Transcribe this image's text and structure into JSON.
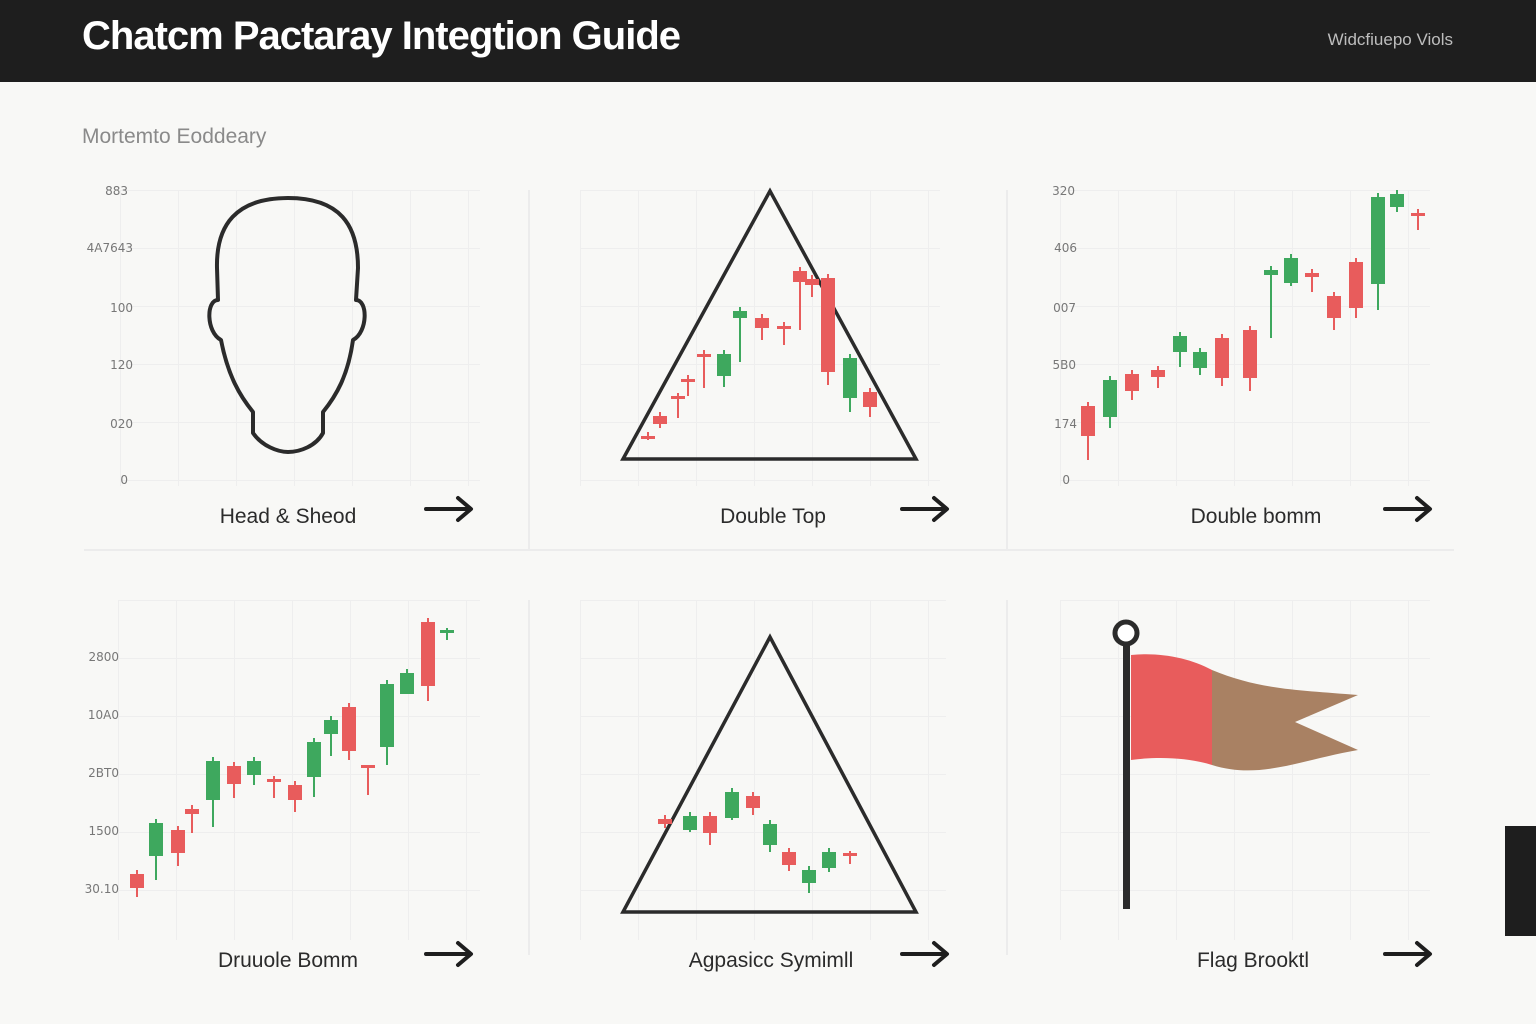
{
  "header": {
    "title": "Chatcm Pactaray Integtion Guide",
    "link": "Widcfiuepo Viols"
  },
  "subtitle": "Mortemto Eoddeary",
  "colors": {
    "bull": "#3ea85e",
    "bear": "#e85c5c",
    "flag_tail": "#a98163",
    "dark": "#1e1e1e"
  },
  "cards": [
    {
      "label": "Head & Sheod",
      "icon": "head-silhouette-icon",
      "yticks": [
        "883",
        "4A7643",
        "100",
        "120",
        "020",
        "0"
      ]
    },
    {
      "label": "Double Top",
      "icon": "triangle-candles-icon",
      "yticks": []
    },
    {
      "label": "Double bomm",
      "icon": "candlestick-uptrend-icon",
      "yticks": [
        "320",
        "406",
        "007",
        "5B0",
        "174",
        "0"
      ]
    },
    {
      "label": "Druuole Bomm",
      "icon": "candlestick-uptrend-icon",
      "yticks": [
        "2800",
        "10A0",
        "2BT0",
        "1500",
        "30.10"
      ]
    },
    {
      "label": "Agpasicc Symimll",
      "icon": "triangle-candles-icon",
      "yticks": []
    },
    {
      "label": "Flag Brooktl",
      "icon": "flag-icon",
      "yticks": []
    }
  ],
  "candles": {
    "double_top": [
      [
        648,
        440,
        432,
        436,
        "bear"
      ],
      [
        660,
        428,
        412,
        424,
        "bear"
      ],
      [
        678,
        418,
        393,
        396,
        "bear"
      ],
      [
        688,
        396,
        375,
        380,
        "bear"
      ],
      [
        704,
        388,
        350,
        355,
        "bear"
      ],
      [
        724,
        387,
        350,
        376,
        "bull"
      ],
      [
        740,
        362,
        307,
        318,
        "bull"
      ],
      [
        762,
        340,
        314,
        328,
        "bear"
      ],
      [
        784,
        345,
        322,
        328,
        "bear"
      ],
      [
        800,
        330,
        267,
        282,
        "bear"
      ],
      [
        812,
        297,
        275,
        285,
        "bear"
      ],
      [
        828,
        385,
        274,
        372,
        "bear"
      ],
      [
        850,
        412,
        354,
        398,
        "bull"
      ],
      [
        870,
        417,
        388,
        407,
        "bear"
      ]
    ],
    "uptrend_a": [
      [
        1088,
        460,
        402,
        436,
        "bear"
      ],
      [
        1110,
        428,
        376,
        417,
        "bull"
      ],
      [
        1132,
        400,
        370,
        391,
        "bear"
      ],
      [
        1158,
        388,
        366,
        377,
        "bear"
      ],
      [
        1180,
        367,
        332,
        352,
        "bull"
      ],
      [
        1200,
        375,
        348,
        368,
        "bull"
      ],
      [
        1222,
        386,
        334,
        378,
        "bear"
      ],
      [
        1250,
        391,
        326,
        378,
        "bear"
      ],
      [
        1271,
        338,
        266,
        275,
        "bull"
      ],
      [
        1291,
        286,
        254,
        283,
        "bull"
      ],
      [
        1312,
        292,
        269,
        277,
        "bear"
      ],
      [
        1334,
        330,
        292,
        318,
        "bear"
      ],
      [
        1356,
        318,
        258,
        308,
        "bear"
      ],
      [
        1378,
        310,
        193,
        284,
        "bull"
      ],
      [
        1397,
        212,
        190,
        207,
        "bull"
      ],
      [
        1418,
        230,
        209,
        213,
        "bear"
      ]
    ],
    "uptrend_b": [
      [
        137,
        897,
        870,
        888,
        "bear"
      ],
      [
        156,
        880,
        819,
        856,
        "bull"
      ],
      [
        178,
        866,
        826,
        853,
        "bear"
      ],
      [
        192,
        833,
        805,
        814,
        "bear"
      ],
      [
        213,
        827,
        757,
        800,
        "bull"
      ],
      [
        234,
        798,
        762,
        784,
        "bear"
      ],
      [
        254,
        785,
        757,
        775,
        "bull"
      ],
      [
        274,
        798,
        776,
        779,
        "bear"
      ],
      [
        295,
        812,
        781,
        800,
        "bear"
      ],
      [
        314,
        797,
        738,
        777,
        "bull"
      ],
      [
        331,
        756,
        716,
        734,
        "bull"
      ],
      [
        349,
        760,
        703,
        751,
        "bear"
      ],
      [
        368,
        795,
        765,
        765,
        "bear"
      ],
      [
        387,
        765,
        680,
        747,
        "bull"
      ],
      [
        407,
        694,
        669,
        694,
        "bull"
      ],
      [
        428,
        701,
        618,
        686,
        "bear"
      ],
      [
        447,
        640,
        628,
        630,
        "bull"
      ]
    ],
    "symmetrical": [
      [
        665,
        828,
        815,
        824,
        "bear"
      ],
      [
        690,
        832,
        812,
        830,
        "bull"
      ],
      [
        710,
        845,
        812,
        833,
        "bear"
      ],
      [
        732,
        820,
        788,
        818,
        "bull"
      ],
      [
        753,
        815,
        792,
        808,
        "bear"
      ],
      [
        770,
        852,
        820,
        845,
        "bull"
      ],
      [
        789,
        871,
        848,
        865,
        "bear"
      ],
      [
        809,
        893,
        866,
        883,
        "bull"
      ],
      [
        829,
        872,
        848,
        868,
        "bull"
      ],
      [
        850,
        864,
        851,
        853,
        "bear"
      ]
    ]
  }
}
